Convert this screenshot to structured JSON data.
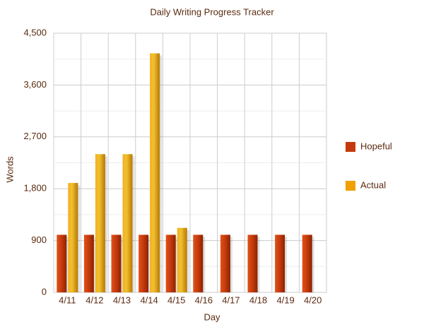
{
  "chart_data": {
    "type": "bar",
    "title": "Daily Writing Progress Tracker",
    "x_label": "Day",
    "y_label": "Words",
    "categories": [
      "4/11",
      "4/12",
      "4/13",
      "4/14",
      "4/15",
      "4/16",
      "4/17",
      "4/18",
      "4/19",
      "4/20"
    ],
    "series": [
      {
        "name": "Hopeful",
        "color": "#c43a0c",
        "values": [
          1000,
          1000,
          1000,
          1000,
          1000,
          1000,
          1000,
          1000,
          1000,
          1000
        ]
      },
      {
        "name": "Actual",
        "color": "#f0a000",
        "values": [
          1900,
          2400,
          2400,
          4150,
          1120,
          null,
          null,
          null,
          null,
          null
        ]
      }
    ],
    "ylim": [
      0,
      4500
    ],
    "yticks": [
      0,
      {
        "value": 900,
        "label": "900"
      },
      {
        "value": 1800,
        "label": "1,800"
      },
      {
        "value": 2700,
        "label": "2,700"
      },
      {
        "value": 3600,
        "label": "3,600"
      },
      {
        "value": 4500,
        "label": "4,500"
      }
    ],
    "grid": true,
    "legend": "right"
  }
}
